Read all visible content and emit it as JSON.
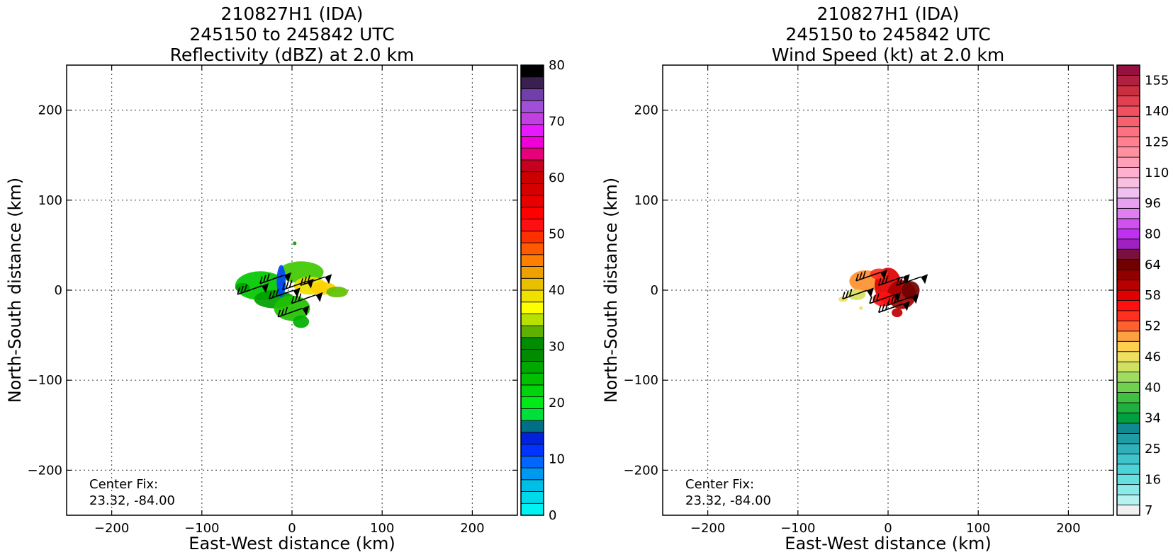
{
  "chart_data": [
    {
      "type": "heatmap",
      "title_lines": [
        "210827H1 (IDA)",
        "245150 to 245842 UTC",
        "Reflectivity (dBZ) at 2.0 km"
      ],
      "xlabel": "East-West distance (km)",
      "ylabel": "North-South distance (km)",
      "xlim": [
        -250,
        250
      ],
      "ylim": [
        -250,
        250
      ],
      "x_ticks": [
        -200,
        -100,
        0,
        100,
        200
      ],
      "y_ticks": [
        -200,
        -100,
        0,
        100,
        200
      ],
      "x_tick_labels": [
        "−200",
        "−100",
        "0",
        "100",
        "200"
      ],
      "y_tick_labels": [
        "−200",
        "−100",
        "0",
        "100",
        "200"
      ],
      "grid": true,
      "annotation_lines": [
        "Center Fix:",
        "23.32, -84.00"
      ],
      "colorbar": {
        "min": 0,
        "max": 80,
        "tick_labels": [
          {
            "value": 0,
            "label": "0"
          },
          {
            "value": 10,
            "label": "10"
          },
          {
            "value": 20,
            "label": "20"
          },
          {
            "value": 30,
            "label": "30"
          },
          {
            "value": 40,
            "label": "40"
          },
          {
            "value": 50,
            "label": "50"
          },
          {
            "value": 60,
            "label": "60"
          },
          {
            "value": 70,
            "label": "70"
          },
          {
            "value": 80,
            "label": "80"
          }
        ],
        "colors": [
          "#00f2f2",
          "#00d9ea",
          "#00bfe6",
          "#0099f0",
          "#0066ff",
          "#0033ff",
          "#0022dd",
          "#006f86",
          "#00e03a",
          "#00ea1a",
          "#00d40a",
          "#00c000",
          "#00a800",
          "#008c00",
          "#008c00",
          "#60b000",
          "#b8e000",
          "#ffff00",
          "#f0e000",
          "#e8c000",
          "#f0a000",
          "#ff8000",
          "#ff5a00",
          "#ff3000",
          "#ff1010",
          "#ff0000",
          "#e80000",
          "#d60000",
          "#cc0000",
          "#c80020",
          "#e6007a",
          "#f000d8",
          "#e818ff",
          "#c040e0",
          "#a050d8",
          "#7040a8",
          "#3a2050",
          "#000000"
        ]
      },
      "echo_blobs": [
        {
          "x": -35,
          "y": 5,
          "rx": 28,
          "ry": 16,
          "color": "#00c800"
        },
        {
          "x": -20,
          "y": -10,
          "rx": 22,
          "ry": 10,
          "color": "#00a000"
        },
        {
          "x": 10,
          "y": 20,
          "rx": 25,
          "ry": 12,
          "color": "#40c800"
        },
        {
          "x": 0,
          "y": -20,
          "rx": 20,
          "ry": 14,
          "color": "#20c000"
        },
        {
          "x": 20,
          "y": 5,
          "rx": 18,
          "ry": 10,
          "color": "#f0e000"
        },
        {
          "x": 35,
          "y": 2,
          "rx": 14,
          "ry": 7,
          "color": "#ffd000"
        },
        {
          "x": -12,
          "y": 10,
          "rx": 5,
          "ry": 18,
          "color": "#0044ff"
        },
        {
          "x": 50,
          "y": -2,
          "rx": 12,
          "ry": 6,
          "color": "#60c000"
        },
        {
          "x": 3,
          "y": 52,
          "rx": 2,
          "ry": 2,
          "color": "#00a000"
        },
        {
          "x": -55,
          "y": 3,
          "rx": 8,
          "ry": 5,
          "color": "#00a000"
        },
        {
          "x": 10,
          "y": -35,
          "rx": 9,
          "ry": 7,
          "color": "#00b000"
        }
      ],
      "wind_barbs": [
        {
          "x": -40,
          "y": 0
        },
        {
          "x": -15,
          "y": 12
        },
        {
          "x": 10,
          "y": 5
        },
        {
          "x": 30,
          "y": 10
        },
        {
          "x": -5,
          "y": -5
        },
        {
          "x": 20,
          "y": -10
        },
        {
          "x": 5,
          "y": -25
        }
      ]
    },
    {
      "type": "heatmap",
      "title_lines": [
        "210827H1 (IDA)",
        "245150 to 245842 UTC",
        "Wind Speed (kt) at 2.0 km"
      ],
      "xlabel": "East-West distance (km)",
      "ylabel": "North-South distance (km)",
      "xlim": [
        -250,
        250
      ],
      "ylim": [
        -250,
        250
      ],
      "x_ticks": [
        -200,
        -100,
        0,
        100,
        200
      ],
      "y_ticks": [
        -200,
        -100,
        0,
        100,
        200
      ],
      "x_tick_labels": [
        "−200",
        "−100",
        "0",
        "100",
        "200"
      ],
      "y_tick_labels": [
        "−200",
        "−100",
        "0",
        "100",
        "200"
      ],
      "grid": true,
      "annotation_lines": [
        "Center Fix:",
        "23.32, -84.00"
      ],
      "colorbar": {
        "tick_labels": [
          "7",
          "16",
          "25",
          "34",
          "40",
          "46",
          "52",
          "58",
          "64",
          "80",
          "96",
          "110",
          "125",
          "140",
          "155"
        ],
        "tick_bin_index": [
          0,
          3,
          6,
          9,
          12,
          15,
          18,
          21,
          24,
          27,
          30,
          33,
          36,
          39,
          42
        ],
        "colors": [
          "#f0f0f0",
          "#b6f2f0",
          "#8ceaea",
          "#66e0e0",
          "#4cd4d8",
          "#40c4cc",
          "#30b0b8",
          "#209ca4",
          "#108a90",
          "#00a040",
          "#20b040",
          "#40c040",
          "#70d050",
          "#a0dc60",
          "#d0e060",
          "#f0e060",
          "#ffd050",
          "#ffa040",
          "#ff6030",
          "#ff3020",
          "#ff1010",
          "#e00000",
          "#b80000",
          "#900000",
          "#700000",
          "#7a1040",
          "#a020c0",
          "#c030f0",
          "#d050f0",
          "#e080f0",
          "#e8a0f0",
          "#f0c0f0",
          "#f8c0e0",
          "#ffb0d0",
          "#ffa0b8",
          "#ff90a0",
          "#ff8090",
          "#ff7080",
          "#f86070",
          "#f05060",
          "#e04050",
          "#c83040",
          "#b02040",
          "#981040"
        ]
      },
      "echo_blobs": [
        {
          "x": -25,
          "y": 10,
          "rx": 18,
          "ry": 12,
          "color": "#ff9030"
        },
        {
          "x": -35,
          "y": -5,
          "rx": 10,
          "ry": 6,
          "color": "#d8e060"
        },
        {
          "x": 0,
          "y": 5,
          "rx": 15,
          "ry": 20,
          "color": "#e00000"
        },
        {
          "x": 15,
          "y": -5,
          "rx": 16,
          "ry": 16,
          "color": "#a80000"
        },
        {
          "x": 25,
          "y": 0,
          "rx": 10,
          "ry": 10,
          "color": "#700000"
        },
        {
          "x": -10,
          "y": 18,
          "rx": 10,
          "ry": 6,
          "color": "#ff3020"
        },
        {
          "x": -5,
          "y": -10,
          "rx": 12,
          "ry": 8,
          "color": "#ff1010"
        },
        {
          "x": -50,
          "y": -10,
          "rx": 5,
          "ry": 3,
          "color": "#f0e060"
        },
        {
          "x": -30,
          "y": -20,
          "rx": 2,
          "ry": 2,
          "color": "#f0e060"
        },
        {
          "x": 10,
          "y": -25,
          "rx": 6,
          "ry": 5,
          "color": "#c00000"
        }
      ],
      "wind_barbs": [
        {
          "x": -30,
          "y": -5
        },
        {
          "x": -15,
          "y": 15
        },
        {
          "x": 10,
          "y": 10
        },
        {
          "x": 30,
          "y": 10
        },
        {
          "x": 0,
          "y": -10
        },
        {
          "x": 20,
          "y": -12
        },
        {
          "x": 10,
          "y": -20
        }
      ]
    }
  ]
}
